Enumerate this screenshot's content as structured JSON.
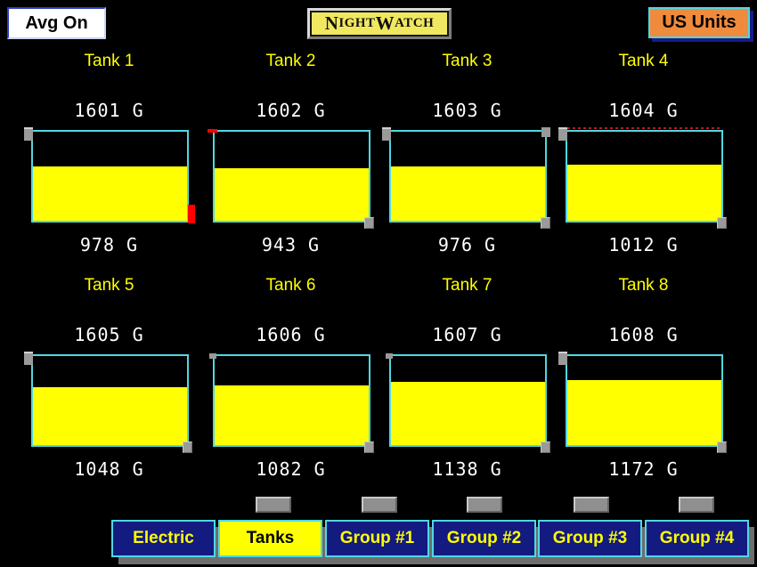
{
  "header": {
    "avg_button_label": "Avg On",
    "logo_text": "NightWatch",
    "logo_display": {
      "cap1": "N",
      "rest1": "IGHT",
      "cap2": "W",
      "rest2": "ATCH"
    },
    "units_button_label": "US Units"
  },
  "tanks": [
    {
      "name": "Tank 1",
      "capacity_label": "1601 G",
      "level_label": "978 G",
      "fill_pct": 61.1,
      "markers": [
        "gray-handle-top-left",
        "red-bar-bottom-right"
      ]
    },
    {
      "name": "Tank 2",
      "capacity_label": "1602 G",
      "level_label": "943 G",
      "fill_pct": 58.9,
      "markers": [
        "red-tick-top-left",
        "gray-square-bottom-right"
      ]
    },
    {
      "name": "Tank 3",
      "capacity_label": "1603 G",
      "level_label": "976 G",
      "fill_pct": 60.9,
      "markers": [
        "gray-handle-top-left",
        "gray-square-top-right",
        "gray-square-bottom-right"
      ]
    },
    {
      "name": "Tank 4",
      "capacity_label": "1604 G",
      "level_label": "1012 G",
      "fill_pct": 63.1,
      "markers": [
        "gray-handle-top-left",
        "gray-square-bottom-right",
        "red-dash-top"
      ]
    },
    {
      "name": "Tank 5",
      "capacity_label": "1605 G",
      "level_label": "1048 G",
      "fill_pct": 65.3,
      "markers": [
        "gray-handle-top-left",
        "gray-square-bottom-right"
      ]
    },
    {
      "name": "Tank 6",
      "capacity_label": "1606 G",
      "level_label": "1082 G",
      "fill_pct": 67.4,
      "markers": [
        "gray-tick-top-left",
        "gray-square-bottom-right"
      ]
    },
    {
      "name": "Tank 7",
      "capacity_label": "1607 G",
      "level_label": "1138 G",
      "fill_pct": 70.8,
      "markers": [
        "gray-tick-top-left",
        "gray-square-bottom-right"
      ]
    },
    {
      "name": "Tank 8",
      "capacity_label": "1608 G",
      "level_label": "1172 G",
      "fill_pct": 72.9,
      "markers": [
        "gray-handle-top-left",
        "gray-square-bottom-right"
      ]
    }
  ],
  "nav": {
    "buttons": [
      {
        "label": "Electric",
        "active": false
      },
      {
        "label": "Tanks",
        "active": true
      },
      {
        "label": "Group #1",
        "active": false
      },
      {
        "label": "Group #2",
        "active": false
      },
      {
        "label": "Group #3",
        "active": false
      },
      {
        "label": "Group #4",
        "active": false
      }
    ],
    "indicator_count": 5
  },
  "colors": {
    "background": "#000000",
    "accent_yellow": "#FFFF00",
    "tank_border_cyan": "#4FD8E2",
    "nav_navy": "#131A80",
    "units_orange": "#F08B3D",
    "alarm_red": "#FF0000",
    "marker_gray": "#9A9A9A"
  }
}
